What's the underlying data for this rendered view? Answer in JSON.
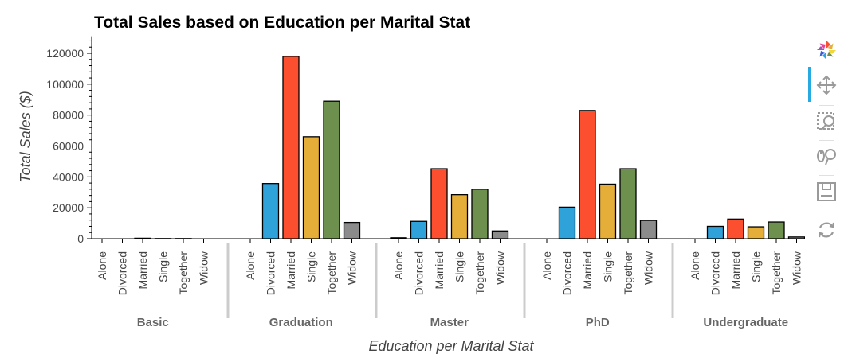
{
  "chart_data": {
    "type": "bar",
    "title": "Total Sales based on Education per Marital Stat",
    "xlabel": "Education per Marital Stat",
    "ylabel": "Total Sales ($)",
    "ylim": [
      0,
      130000
    ],
    "yticks": [
      0,
      20000,
      40000,
      60000,
      80000,
      100000,
      120000
    ],
    "ytick_labels": [
      "0",
      "20000",
      "40000",
      "60000",
      "80000",
      "100000",
      "120000"
    ],
    "groups": [
      "Basic",
      "Graduation",
      "Master",
      "PhD",
      "Undergraduate"
    ],
    "categories": [
      "Alone",
      "Divorced",
      "Married",
      "Single",
      "Together",
      "Widow"
    ],
    "category_colors": {
      "Alone": "#e6e6e6",
      "Divorced": "#30a2da",
      "Married": "#fc4f30",
      "Single": "#e5ae38",
      "Together": "#6d904f",
      "Widow": "#8b8b8b"
    },
    "values": {
      "Basic": [
        0,
        0,
        300,
        100,
        100,
        0
      ],
      "Graduation": [
        0,
        35700,
        118000,
        66000,
        89000,
        10500
      ],
      "Master": [
        600,
        11200,
        45300,
        28500,
        32000,
        5000
      ],
      "PhD": [
        0,
        20400,
        83000,
        35300,
        45300,
        11800
      ],
      "Undergraduate": [
        0,
        8000,
        12700,
        7700,
        10800,
        1100
      ]
    },
    "grid": false,
    "legend": "none"
  },
  "toolbar": {
    "tools": [
      "bokeh-logo-icon",
      "pan-icon",
      "box-zoom-icon",
      "wheel-zoom-icon",
      "save-icon",
      "reset-icon"
    ],
    "accent": "#26aae1"
  }
}
